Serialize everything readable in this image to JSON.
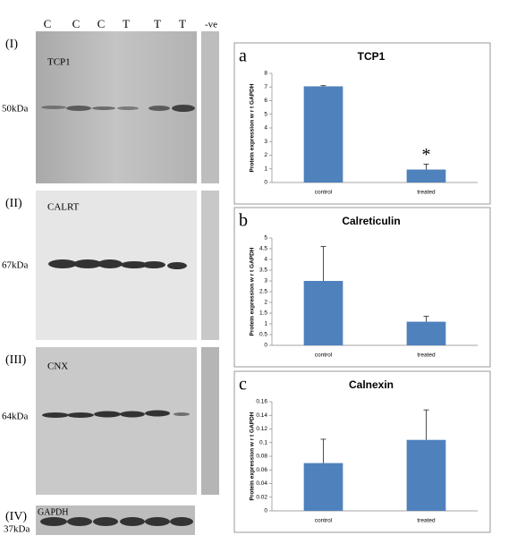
{
  "blots": {
    "lane_labels": [
      "C",
      "C",
      "C",
      "T",
      "T",
      "T",
      "-ve"
    ],
    "panels": [
      {
        "numeral": "(I)",
        "protein": "TCP1",
        "size": "50kDa"
      },
      {
        "numeral": "(II)",
        "protein": "CALRT",
        "size": "67kDa"
      },
      {
        "numeral": "(III)",
        "protein": "CNX",
        "size": "64kDa"
      },
      {
        "numeral": "(IV)",
        "protein": "GAPDH",
        "size": "37kDa"
      }
    ]
  },
  "chart_data": [
    {
      "type": "bar",
      "label": "a",
      "title": "TCP1",
      "ylabel": "Protein expression w r t GAPDH",
      "categories": [
        "control",
        "treated"
      ],
      "values": [
        7.05,
        0.95
      ],
      "errors": [
        0.05,
        0.4
      ],
      "color": "#4f81bd",
      "ylim": [
        0,
        8
      ],
      "yticks": [
        0,
        1,
        2,
        3,
        4,
        5,
        6,
        7,
        8
      ],
      "annotations": [
        {
          "text": "*",
          "x": "treated"
        }
      ]
    },
    {
      "type": "bar",
      "label": "b",
      "title": "Calreticulin",
      "ylabel": "Protein expression w r t GAPDH",
      "categories": [
        "control",
        "treated"
      ],
      "values": [
        3.0,
        1.1
      ],
      "errors": [
        1.6,
        0.25
      ],
      "color": "#4f81bd",
      "ylim": [
        0,
        5
      ],
      "yticks": [
        0,
        0.5,
        1,
        1.5,
        2,
        2.5,
        3,
        3.5,
        4,
        4.5,
        5
      ]
    },
    {
      "type": "bar",
      "label": "c",
      "title": "Calnexin",
      "ylabel": "Protein expression w r t GAPDH",
      "categories": [
        "control",
        "treated"
      ],
      "values": [
        0.07,
        0.104
      ],
      "errors": [
        0.035,
        0.044
      ],
      "color": "#4f81bd",
      "ylim": [
        0,
        0.16
      ],
      "yticks": [
        0,
        0.02,
        0.04,
        0.06,
        0.08,
        0.1,
        0.12,
        0.14,
        0.16
      ]
    }
  ]
}
